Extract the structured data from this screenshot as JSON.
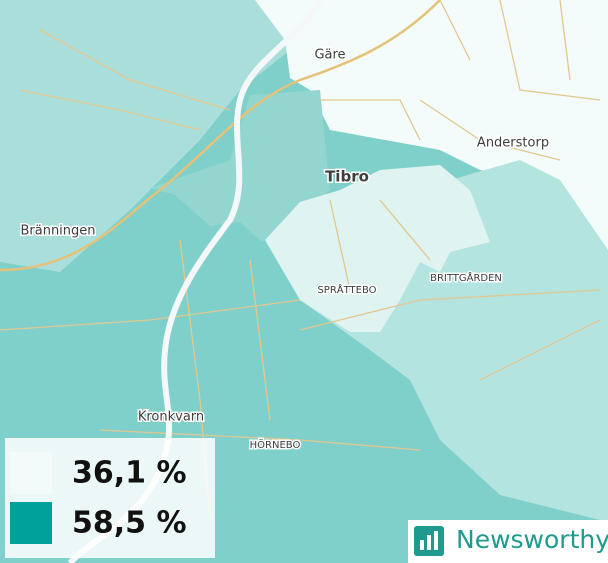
{
  "map": {
    "places": [
      {
        "label": "Gäre"
      },
      {
        "label": "Anderstorp"
      },
      {
        "label": "Tibro"
      },
      {
        "label": "Bränningen"
      },
      {
        "label": "SPRÅTTEBO"
      },
      {
        "label": "BRITTGÅRDEN"
      },
      {
        "label": "Kronkvarn"
      },
      {
        "label": "HÖRNEBO"
      }
    ]
  },
  "legend": {
    "items": [
      {
        "label": "36,1 %",
        "color": "#f2fbfa"
      },
      {
        "label": "58,5 %",
        "color": "#00a19a"
      }
    ]
  },
  "logo": {
    "text": "Newsworthy"
  }
}
